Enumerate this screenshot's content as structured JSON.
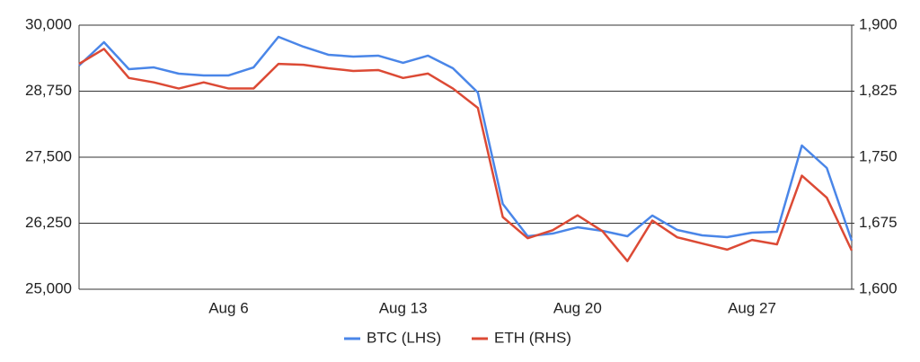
{
  "chart_data": {
    "type": "line",
    "categories": [
      null,
      null,
      null,
      null,
      null,
      null,
      "Aug 6",
      null,
      null,
      null,
      null,
      null,
      null,
      "Aug 13",
      null,
      null,
      null,
      null,
      null,
      null,
      "Aug 20",
      null,
      null,
      null,
      null,
      null,
      null,
      "Aug 27",
      null,
      null,
      null,
      null
    ],
    "series": [
      {
        "name": "BTC (LHS)",
        "color": "#4a86e8",
        "values": [
          29235,
          29677,
          29167,
          29200,
          29082,
          29048,
          29048,
          29200,
          29779,
          29592,
          29439,
          29405,
          29422,
          29286,
          29422,
          29184,
          28724,
          26615,
          26003,
          26054,
          26173,
          26105,
          26003,
          26395,
          26122,
          26020,
          25986,
          26071,
          26088,
          27721,
          27296,
          25918
        ]
      },
      {
        "name": "ETH (RHS)",
        "color": "#dc4a35",
        "axis": "y2",
        "values": [
          1856,
          1873,
          1840,
          1835,
          1828,
          1835,
          1828,
          1828,
          1856,
          1855,
          1851,
          1848,
          1849,
          1840,
          1845,
          1828,
          1806,
          1682,
          1658,
          1667,
          1684,
          1666,
          1632,
          1678,
          1659,
          1652,
          1645,
          1656,
          1651,
          1729,
          1704,
          1644
        ]
      }
    ],
    "ylim": [
      25000,
      30000
    ],
    "yticks": [
      {
        "value": 25000,
        "label": "25,000"
      },
      {
        "value": 26250,
        "label": "26,250"
      },
      {
        "value": 27500,
        "label": "27,500"
      },
      {
        "value": 28750,
        "label": "28,750"
      },
      {
        "value": 30000,
        "label": "30,000"
      }
    ],
    "y2lim": [
      1600,
      1900
    ],
    "y2ticks": [
      {
        "value": 1600,
        "label": "1,600"
      },
      {
        "value": 1675,
        "label": "1,675"
      },
      {
        "value": 1750,
        "label": "1,750"
      },
      {
        "value": 1825,
        "label": "1,825"
      },
      {
        "value": 1900,
        "label": "1,900"
      }
    ],
    "grid": true,
    "legend": "bottom"
  }
}
